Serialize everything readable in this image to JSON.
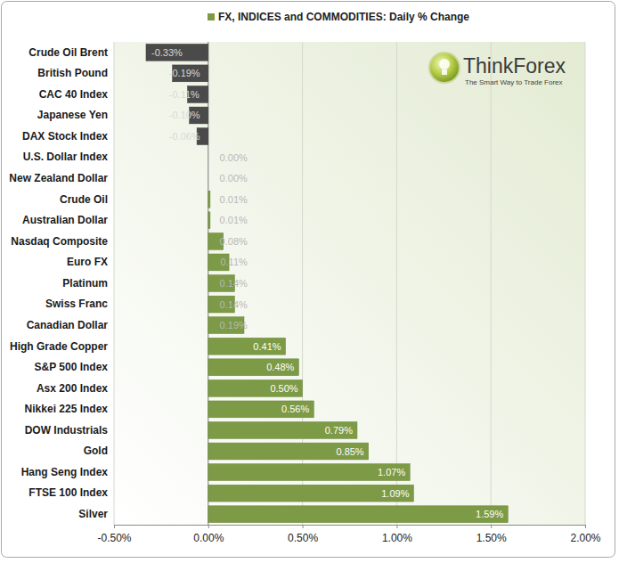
{
  "chart_data": {
    "type": "bar",
    "orientation": "horizontal",
    "categories": [
      "Crude Oil Brent",
      "British Pound",
      "CAC 40 Index",
      "Japanese Yen",
      "DAX Stock Index",
      "U.S. Dollar Index",
      "New Zealand Dollar",
      "Crude Oil",
      "Australian Dollar",
      "Nasdaq Composite",
      "Euro FX",
      "Platinum",
      "Swiss Franc",
      "Canadian Dollar",
      "High Grade Copper",
      "S&P 500 Index",
      "Asx 200 Index",
      "Nikkei 225 Index",
      "DOW Industrials",
      "Gold",
      "Hang Seng Index",
      "FTSE 100 Index",
      "Silver"
    ],
    "series": [
      {
        "name": "FX, INDICES and COMMODITIES: Daily % Change",
        "color": "#7d9a46",
        "colors": [
          "#4a4a4a",
          "#4a4a4a",
          "#4a4a4a",
          "#4a4a4a",
          "#4a4a4a",
          "#7d9a46",
          "#7d9a46",
          "#7d9a46",
          "#7d9a46",
          "#7d9a46",
          "#7d9a46",
          "#7d9a46",
          "#7d9a46",
          "#7d9a46",
          "#7d9a46",
          "#7d9a46",
          "#7d9a46",
          "#7d9a46",
          "#7d9a46",
          "#7d9a46",
          "#7d9a46",
          "#7d9a46",
          "#7d9a46"
        ],
        "values": [
          -0.33,
          -0.19,
          -0.11,
          -0.1,
          -0.06,
          0.0,
          0.0,
          0.01,
          0.01,
          0.08,
          0.11,
          0.14,
          0.14,
          0.19,
          0.41,
          0.48,
          0.5,
          0.56,
          0.79,
          0.85,
          1.07,
          1.09,
          1.59
        ],
        "value_labels": [
          "-0.33%",
          "-0.19%",
          "-0.11%",
          "-0.10%",
          "-0.06%",
          "0.00%",
          "0.00%",
          "0.01%",
          "0.01%",
          "0.08%",
          "0.11%",
          "0.14%",
          "0.14%",
          "0.19%",
          "0.41%",
          "0.48%",
          "0.50%",
          "0.56%",
          "0.79%",
          "0.85%",
          "1.07%",
          "1.09%",
          "1.59%"
        ]
      }
    ],
    "xlim": [
      -0.5,
      2.0
    ],
    "xticks": [
      {
        "value": -0.5,
        "label": "-0.50%"
      },
      {
        "value": 0,
        "label": "0.00%"
      },
      {
        "value": 0.5,
        "label": "0.50%"
      },
      {
        "value": 1.0,
        "label": "1.00%"
      },
      {
        "value": 1.5,
        "label": "1.50%"
      },
      {
        "value": 2.0,
        "label": "2.00%"
      }
    ],
    "grid": true,
    "legend": "top",
    "data_labels": true,
    "annotations": [
      "ThinkForex",
      "The Smart Way to Trade Forex"
    ]
  }
}
